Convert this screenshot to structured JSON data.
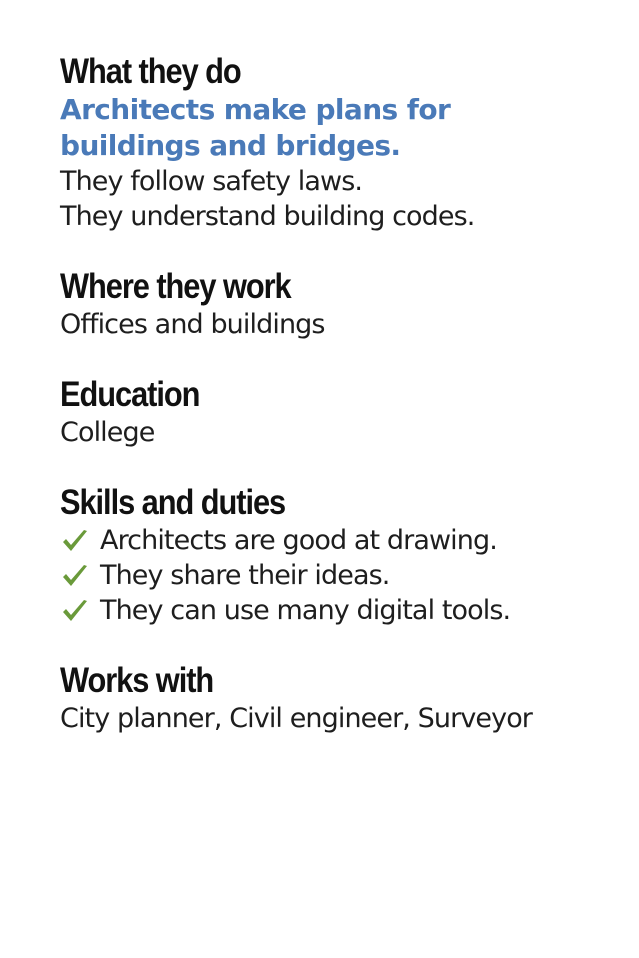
{
  "what_they_do": {
    "heading": "What they do",
    "lead": "Architects make plans for buildings and bridges.",
    "lines": [
      "They follow safety laws.",
      "They understand building codes."
    ]
  },
  "where_they_work": {
    "heading": "Where they work",
    "text": "Offices and buildings"
  },
  "education": {
    "heading": "Education",
    "text": "College"
  },
  "skills": {
    "heading": "Skills and duties",
    "items": [
      "Architects are good at drawing.",
      "They share their ideas.",
      "They can use many digital tools."
    ],
    "check_icon": "checkmark-icon",
    "check_color": "#6a9a3a"
  },
  "works_with": {
    "heading": "Works with",
    "text": "City planner, Civil engineer, Surveyor"
  },
  "colors": {
    "accent": "#4a7ab8",
    "text": "#1e1e1e",
    "heading": "#111111",
    "background": "#ffffff"
  }
}
